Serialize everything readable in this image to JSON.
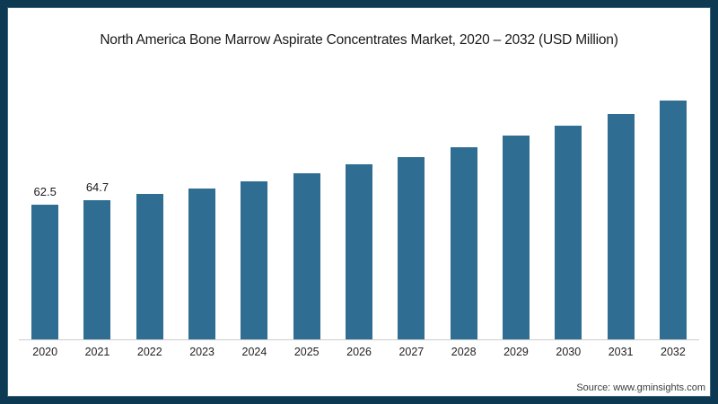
{
  "chart": {
    "source_label": "Source: www.gminsights.com"
  },
  "chart_data": {
    "type": "bar",
    "title": "North America Bone Marrow Aspirate Concentrates Market, 2020 – 2032 (USD Million)",
    "categories": [
      "2020",
      "2021",
      "2022",
      "2023",
      "2024",
      "2025",
      "2026",
      "2027",
      "2028",
      "2029",
      "2030",
      "2031",
      "2032"
    ],
    "values": [
      62.5,
      64.7,
      67.4,
      70.2,
      73.5,
      77.3,
      81.2,
      84.7,
      89.3,
      94.4,
      99.3,
      104.8,
      110.8
    ],
    "data_labels": [
      "62.5",
      "64.7",
      "",
      "",
      "",
      "",
      "",
      "",
      "",
      "",
      "",
      "",
      ""
    ],
    "xlabel": "",
    "ylabel": "USD Million",
    "ylim": [
      0,
      118
    ],
    "grid": "off",
    "legend": "none",
    "bar_color": "#2f6e92",
    "axis_line_color": "#cccccc",
    "frame_color": "#0d3a52",
    "title_color": "#1a1a1a"
  }
}
